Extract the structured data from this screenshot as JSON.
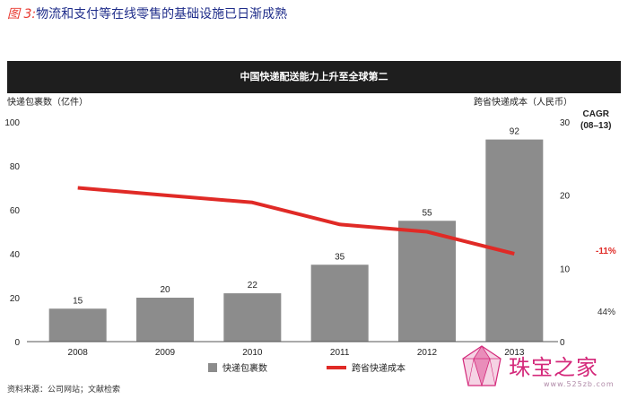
{
  "figure": {
    "label": "图 3:",
    "title": "物流和支付等在线零售的基础设施已日渐成熟"
  },
  "chart_banner": "中国快递配送能力上升至全球第二",
  "chart_data": {
    "type": "bar",
    "categories": [
      "2008",
      "2009",
      "2010",
      "2011",
      "2012",
      "2013"
    ],
    "series": [
      {
        "name": "快递包裹数",
        "kind": "bar",
        "axis": "left",
        "color": "#8c8c8c",
        "values": [
          15,
          20,
          22,
          35,
          55,
          92
        ],
        "data_labels": [
          "15",
          "20",
          "22",
          "35",
          "55",
          "92"
        ]
      },
      {
        "name": "跨省快递成本",
        "kind": "line",
        "axis": "right",
        "color": "#e02a26",
        "values": [
          21,
          20,
          19,
          16,
          15,
          12
        ]
      }
    ],
    "ylabel": "快递包裹数（亿件）",
    "y2label": "跨省快递成本（人民币）",
    "ylim": [
      0,
      100
    ],
    "y2lim": [
      0,
      30
    ],
    "yticks": [
      "0",
      "20",
      "40",
      "60",
      "80",
      "100"
    ],
    "y2ticks": [
      "0",
      "10",
      "20",
      "30"
    ],
    "legend_position": "bottom-center",
    "grid": false
  },
  "cagr": {
    "header_line1": "CAGR",
    "header_line2": "(08–13)",
    "line_value": "-11%",
    "bar_value": "44%"
  },
  "source": "资料来源：公司网站；文献检索",
  "watermark": {
    "name": "珠宝之家",
    "url": "www.525zb.com"
  }
}
